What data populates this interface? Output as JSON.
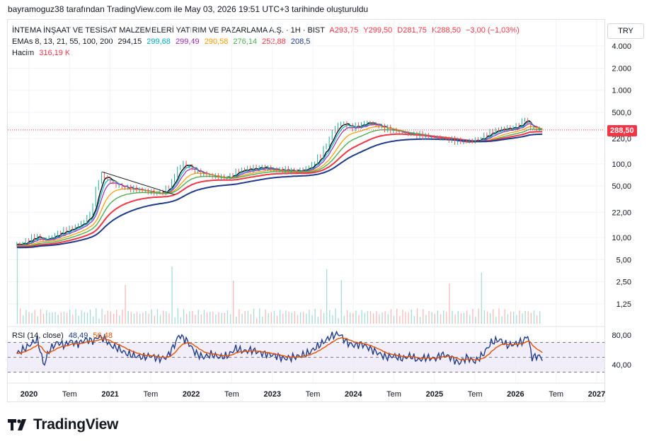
{
  "caption": "bayramoguz38 tarafından TradingView.com ile May 03, 2026 19:51 UTC+3 tarihinde oluşturuldu",
  "symbol": {
    "name": "İNTEMA İNŞAAT VE TESİSAT MALZEMELERİ YATIRIM VE PAZARLAMA A.Ş. · 1H · BIST",
    "open": "A293,75",
    "high": "Y299,50",
    "low": "D281,75",
    "close": "K288,50",
    "change": "−3,00 (−1,03%)"
  },
  "emas": {
    "label": "EMAs 8, 13, 21, 55, 100, 200",
    "values": [
      "294,15",
      "299,68",
      "299,49",
      "290,58",
      "276,14",
      "252,88",
      "208,5"
    ]
  },
  "volume": {
    "label": "Hacim",
    "value": "316,19 K"
  },
  "rsi": {
    "label": "RSI (14, close)",
    "value": "48,49",
    "ma": "56,48"
  },
  "currency": "TRY",
  "last_price": "288,50",
  "brand": "TradingView",
  "colors": {
    "price": "#131722",
    "ema8": "#000000",
    "ema13": "#00bcd4",
    "ema21": "#9c27b0",
    "ema55": "#ff9800",
    "ema100": "#4caf50",
    "ema200a": "#f23645",
    "ema200b": "#1e3a8a",
    "up": "#26a69a",
    "down": "#ef5350",
    "rsi": "#1e3a8a",
    "rsi_ma": "#e65100",
    "rsi_band": "#ede7f6"
  },
  "chart_data": {
    "type": "line",
    "price_scale": "log",
    "y_ticks": [
      {
        "label": "4.000",
        "value": 4000
      },
      {
        "label": "2.000",
        "value": 2000
      },
      {
        "label": "1.000",
        "value": 1000
      },
      {
        "label": "500,0",
        "value": 500
      },
      {
        "label": "220,0",
        "value": 220
      },
      {
        "label": "100,0",
        "value": 100
      },
      {
        "label": "50,00",
        "value": 50
      },
      {
        "label": "22,00",
        "value": 22
      },
      {
        "label": "10,00",
        "value": 10
      },
      {
        "label": "5,00",
        "value": 5
      },
      {
        "label": "2,50",
        "value": 2.5
      },
      {
        "label": "1,25",
        "value": 1.25
      }
    ],
    "x_ticks": [
      {
        "label": "2020",
        "t": 2020.0,
        "bold": true
      },
      {
        "label": "Tem",
        "t": 2020.5,
        "bold": false
      },
      {
        "label": "2021",
        "t": 2021.0,
        "bold": true
      },
      {
        "label": "Tem",
        "t": 2021.5,
        "bold": false
      },
      {
        "label": "2022",
        "t": 2022.0,
        "bold": true
      },
      {
        "label": "Tem",
        "t": 2022.5,
        "bold": false
      },
      {
        "label": "2023",
        "t": 2023.0,
        "bold": true
      },
      {
        "label": "Tem",
        "t": 2023.5,
        "bold": false
      },
      {
        "label": "2024",
        "t": 2024.0,
        "bold": true
      },
      {
        "label": "Tem",
        "t": 2024.5,
        "bold": false
      },
      {
        "label": "2025",
        "t": 2025.0,
        "bold": true
      },
      {
        "label": "Tem",
        "t": 2025.5,
        "bold": false
      },
      {
        "label": "2026",
        "t": 2026.0,
        "bold": true
      },
      {
        "label": "Tem",
        "t": 2026.5,
        "bold": false
      },
      {
        "label": "2027",
        "t": 2027.0,
        "bold": true
      }
    ],
    "price": [
      [
        2019.85,
        8.0
      ],
      [
        2019.95,
        8.3
      ],
      [
        2020.05,
        9.5
      ],
      [
        2020.12,
        10.5
      ],
      [
        2020.2,
        9.2
      ],
      [
        2020.3,
        10.0
      ],
      [
        2020.4,
        11.5
      ],
      [
        2020.5,
        12.5
      ],
      [
        2020.6,
        14.0
      ],
      [
        2020.7,
        16.0
      ],
      [
        2020.8,
        22.0
      ],
      [
        2020.85,
        40.0
      ],
      [
        2020.9,
        65.0
      ],
      [
        2020.95,
        72.0
      ],
      [
        2021.0,
        62.0
      ],
      [
        2021.1,
        52.0
      ],
      [
        2021.2,
        48.0
      ],
      [
        2021.3,
        46.0
      ],
      [
        2021.4,
        44.0
      ],
      [
        2021.5,
        42.0
      ],
      [
        2021.6,
        40.0
      ],
      [
        2021.7,
        42.0
      ],
      [
        2021.8,
        58.0
      ],
      [
        2021.85,
        80.0
      ],
      [
        2021.9,
        95.0
      ],
      [
        2021.95,
        100.0
      ],
      [
        2022.0,
        92.0
      ],
      [
        2022.1,
        78.0
      ],
      [
        2022.2,
        72.0
      ],
      [
        2022.3,
        68.0
      ],
      [
        2022.4,
        65.0
      ],
      [
        2022.5,
        66.0
      ],
      [
        2022.6,
        80.0
      ],
      [
        2022.7,
        84.0
      ],
      [
        2022.8,
        86.0
      ],
      [
        2022.9,
        90.0
      ],
      [
        2023.0,
        86.0
      ],
      [
        2023.1,
        82.0
      ],
      [
        2023.2,
        82.0
      ],
      [
        2023.3,
        80.0
      ],
      [
        2023.4,
        82.0
      ],
      [
        2023.5,
        92.0
      ],
      [
        2023.6,
        120.0
      ],
      [
        2023.7,
        180.0
      ],
      [
        2023.75,
        240.0
      ],
      [
        2023.82,
        330.0
      ],
      [
        2023.9,
        360.0
      ],
      [
        2024.0,
        310.0
      ],
      [
        2024.1,
        330.0
      ],
      [
        2024.2,
        370.0
      ],
      [
        2024.3,
        340.0
      ],
      [
        2024.4,
        310.0
      ],
      [
        2024.5,
        290.0
      ],
      [
        2024.6,
        270.0
      ],
      [
        2024.7,
        255.0
      ],
      [
        2024.8,
        250.0
      ],
      [
        2024.9,
        240.0
      ],
      [
        2025.0,
        230.0
      ],
      [
        2025.1,
        225.0
      ],
      [
        2025.2,
        215.0
      ],
      [
        2025.3,
        205.0
      ],
      [
        2025.4,
        200.0
      ],
      [
        2025.5,
        205.0
      ],
      [
        2025.6,
        220.0
      ],
      [
        2025.7,
        260.0
      ],
      [
        2025.8,
        290.0
      ],
      [
        2025.9,
        300.0
      ],
      [
        2026.0,
        310.0
      ],
      [
        2026.1,
        350.0
      ],
      [
        2026.15,
        420.0
      ],
      [
        2026.2,
        320.0
      ],
      [
        2026.28,
        300.0
      ],
      [
        2026.33,
        288.5
      ]
    ],
    "emas": [
      {
        "period": 8,
        "color": "#000000"
      },
      {
        "period": 13,
        "color": "#00bcd4"
      },
      {
        "period": 21,
        "color": "#9c27b0"
      },
      {
        "period": 55,
        "color": "#ff9800"
      },
      {
        "period": 100,
        "color": "#4caf50"
      },
      {
        "period": 200,
        "color": "#f23645"
      },
      {
        "period": 200,
        "color": "#1e3a8a"
      }
    ],
    "rsi": {
      "levels": [
        {
          "label": "80,00",
          "value": 80
        },
        {
          "label": "40,00",
          "value": 40
        }
      ],
      "bands": [
        70,
        50,
        30
      ],
      "values": [
        [
          2019.85,
          55
        ],
        [
          2019.95,
          62
        ],
        [
          2020.05,
          70
        ],
        [
          2020.1,
          74
        ],
        [
          2020.15,
          55
        ],
        [
          2020.18,
          38
        ],
        [
          2020.25,
          60
        ],
        [
          2020.35,
          70
        ],
        [
          2020.45,
          66
        ],
        [
          2020.5,
          72
        ],
        [
          2020.6,
          68
        ],
        [
          2020.7,
          74
        ],
        [
          2020.8,
          72
        ],
        [
          2020.85,
          78
        ],
        [
          2020.95,
          74
        ],
        [
          2021.0,
          66
        ],
        [
          2021.1,
          62
        ],
        [
          2021.2,
          55
        ],
        [
          2021.3,
          52
        ],
        [
          2021.4,
          50
        ],
        [
          2021.5,
          52
        ],
        [
          2021.6,
          48
        ],
        [
          2021.7,
          50
        ],
        [
          2021.8,
          68
        ],
        [
          2021.85,
          80
        ],
        [
          2021.95,
          72
        ],
        [
          2022.05,
          56
        ],
        [
          2022.15,
          50
        ],
        [
          2022.25,
          54
        ],
        [
          2022.35,
          50
        ],
        [
          2022.45,
          52
        ],
        [
          2022.55,
          62
        ],
        [
          2022.65,
          58
        ],
        [
          2022.75,
          60
        ],
        [
          2022.85,
          56
        ],
        [
          2022.95,
          54
        ],
        [
          2023.05,
          52
        ],
        [
          2023.15,
          48
        ],
        [
          2023.25,
          50
        ],
        [
          2023.35,
          52
        ],
        [
          2023.45,
          56
        ],
        [
          2023.55,
          64
        ],
        [
          2023.65,
          72
        ],
        [
          2023.72,
          78
        ],
        [
          2023.82,
          82
        ],
        [
          2023.92,
          70
        ],
        [
          2024.0,
          66
        ],
        [
          2024.1,
          68
        ],
        [
          2024.2,
          62
        ],
        [
          2024.3,
          56
        ],
        [
          2024.4,
          50
        ],
        [
          2024.5,
          52
        ],
        [
          2024.6,
          48
        ],
        [
          2024.7,
          52
        ],
        [
          2024.8,
          46
        ],
        [
          2024.9,
          50
        ],
        [
          2025.0,
          48
        ],
        [
          2025.1,
          54
        ],
        [
          2025.2,
          50
        ],
        [
          2025.3,
          42
        ],
        [
          2025.4,
          50
        ],
        [
          2025.5,
          44
        ],
        [
          2025.6,
          54
        ],
        [
          2025.7,
          70
        ],
        [
          2025.8,
          74
        ],
        [
          2025.9,
          66
        ],
        [
          2026.0,
          68
        ],
        [
          2026.1,
          72
        ],
        [
          2026.15,
          80
        ],
        [
          2026.2,
          50
        ],
        [
          2026.28,
          52
        ],
        [
          2026.33,
          48.49
        ]
      ]
    }
  }
}
